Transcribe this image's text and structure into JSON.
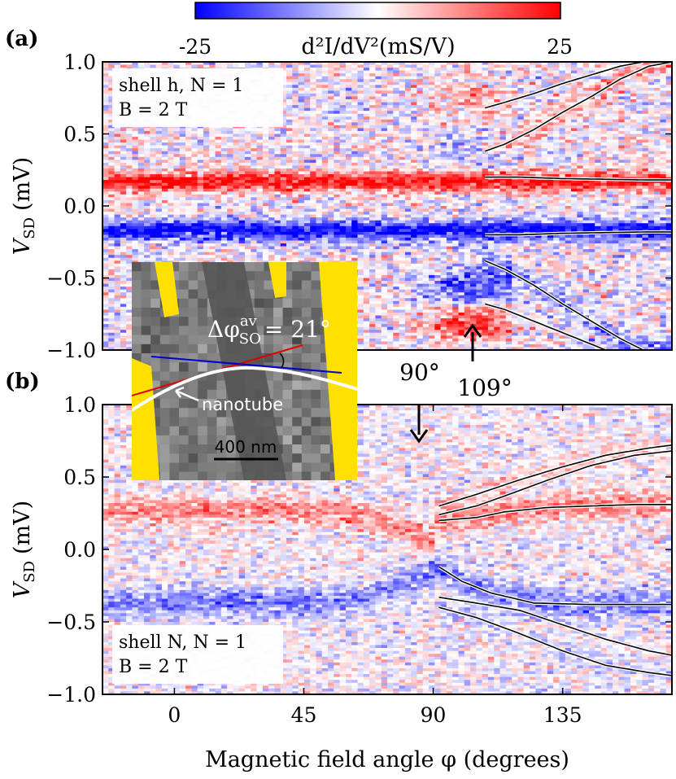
{
  "colors": {
    "negative": "#0000ff",
    "neutral": "#ffffff",
    "positive": "#ff0000",
    "inset_bg": "#8c8c8c",
    "electrode": "#ffe000",
    "inset_red_line": "#e00000",
    "inset_blue_line": "#0000cc"
  },
  "colorbar": {
    "min_label": "-25",
    "max_label": "25",
    "label": "d²I/dV²(mS/V)"
  },
  "chart_data": [
    {
      "type": "heatmap",
      "panel_label": "(a)",
      "title": "",
      "xlabel": "",
      "ylabel": "V_SD (mV)",
      "ylabel_main": "V",
      "ylabel_sub": "SD",
      "ylabel_unit": "(mV)",
      "xlim": [
        -25,
        173
      ],
      "ylim": [
        -1.0,
        1.0
      ],
      "yticks": [
        1.0,
        0.5,
        0.0,
        -0.5,
        -1.0
      ],
      "yticklabels": [
        "1.0",
        "0.5",
        "0.0",
        "−0.5",
        "−1.0"
      ],
      "clim": [
        -25,
        25
      ],
      "annotation_line1": "shell h, N = 1",
      "annotation_line2": "B = 2 T",
      "features": [
        {
          "name": "positive-peak",
          "center_mV": 0.17,
          "amplitude": 25,
          "width_mV": 0.045
        },
        {
          "name": "negative-peak",
          "center_mV": -0.17,
          "amplitude": -25,
          "width_mV": 0.05
        }
      ],
      "fit_curves": [
        {
          "name": "upper-outer",
          "x": [
            108,
            115,
            125,
            135,
            145,
            155,
            163
          ],
          "y": [
            0.68,
            0.72,
            0.78,
            0.85,
            0.91,
            0.97,
            1.0
          ]
        },
        {
          "name": "upper-inner",
          "x": [
            108,
            115,
            125,
            135,
            145,
            155,
            165,
            173
          ],
          "y": [
            0.38,
            0.43,
            0.53,
            0.65,
            0.76,
            0.88,
            0.97,
            1.0
          ]
        },
        {
          "name": "middle-upper",
          "x": [
            108,
            120,
            135,
            150,
            165,
            173
          ],
          "y": [
            0.2,
            0.2,
            0.19,
            0.185,
            0.18,
            0.18
          ]
        },
        {
          "name": "middle-lower",
          "x": [
            108,
            120,
            135,
            150,
            165,
            173
          ],
          "y": [
            -0.2,
            -0.2,
            -0.19,
            -0.185,
            -0.18,
            -0.18
          ]
        },
        {
          "name": "lower-inner",
          "x": [
            108,
            115,
            125,
            135,
            145,
            155,
            163
          ],
          "y": [
            -0.38,
            -0.44,
            -0.55,
            -0.68,
            -0.8,
            -0.92,
            -1.0
          ]
        },
        {
          "name": "lower-outer",
          "x": [
            108,
            115,
            125,
            135,
            145,
            150
          ],
          "y": [
            -0.68,
            -0.72,
            -0.8,
            -0.88,
            -0.96,
            -1.0
          ]
        }
      ],
      "arrow_label": "109°",
      "arrow_x_deg": 109
    },
    {
      "type": "heatmap",
      "panel_label": "(b)",
      "title": "",
      "xlabel": "Magnetic field angle φ (degrees)",
      "ylabel": "V_SD (mV)",
      "ylabel_main": "V",
      "ylabel_sub": "SD",
      "ylabel_unit": "(mV)",
      "xlim": [
        -25,
        173
      ],
      "ylim": [
        -1.0,
        1.0
      ],
      "xticks": [
        0,
        45,
        90,
        135
      ],
      "xticklabels": [
        "0",
        "45",
        "90",
        "135"
      ],
      "yticks": [
        1.0,
        0.5,
        0.0,
        -0.5,
        -1.0
      ],
      "yticklabels": [
        "1.0",
        "0.5",
        "0.0",
        "−0.5",
        "−1.0"
      ],
      "clim": [
        -25,
        25
      ],
      "annotation_line1": "shell N, N = 1",
      "annotation_line2": "B = 2 T",
      "features": [
        {
          "name": "positive-band",
          "amplitude": 12,
          "width_mV": 0.06
        },
        {
          "name": "negative-band",
          "amplitude": -12,
          "width_mV": 0.07
        }
      ],
      "fit_curves": [
        {
          "name": "top",
          "x": [
            92,
            105,
            120,
            135,
            150,
            165,
            173
          ],
          "y": [
            0.3,
            0.38,
            0.48,
            0.57,
            0.65,
            0.7,
            0.72
          ]
        },
        {
          "name": "second",
          "x": [
            92,
            105,
            115,
            130,
            145,
            160,
            173
          ],
          "y": [
            0.24,
            0.3,
            0.37,
            0.48,
            0.58,
            0.65,
            0.68
          ]
        },
        {
          "name": "third",
          "x": [
            92,
            105,
            115,
            130,
            145,
            160,
            173
          ],
          "y": [
            0.2,
            0.22,
            0.26,
            0.29,
            0.3,
            0.31,
            0.31
          ]
        },
        {
          "name": "fourth",
          "x": [
            92,
            100,
            110,
            125,
            145,
            160,
            173
          ],
          "y": [
            -0.12,
            -0.22,
            -0.3,
            -0.37,
            -0.38,
            -0.38,
            -0.38
          ]
        },
        {
          "name": "fifth",
          "x": [
            92,
            105,
            120,
            135,
            150,
            165,
            173
          ],
          "y": [
            -0.33,
            -0.37,
            -0.42,
            -0.52,
            -0.62,
            -0.7,
            -0.73
          ]
        },
        {
          "name": "sixth",
          "x": [
            92,
            105,
            120,
            135,
            150,
            165,
            173
          ],
          "y": [
            -0.4,
            -0.47,
            -0.58,
            -0.7,
            -0.8,
            -0.85,
            -0.87
          ]
        }
      ],
      "arrow_label": "90°",
      "arrow_x_deg": 90
    }
  ],
  "inset": {
    "angle_label": "Δφ",
    "angle_sup": "av",
    "angle_sub": "SO",
    "angle_value": "= 21°",
    "nanotube_label": "nanotube",
    "scalebar_label": "400 nm"
  }
}
